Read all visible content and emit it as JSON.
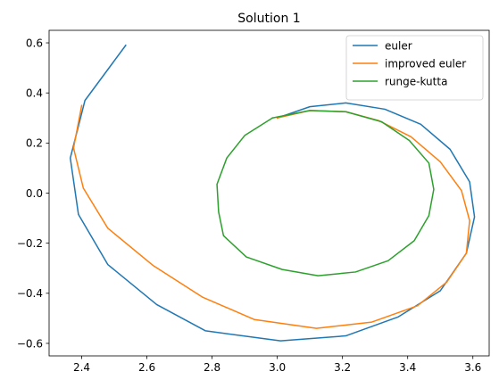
{
  "chart_data": {
    "type": "line",
    "title": "Solution 1",
    "xlabel": "",
    "ylabel": "",
    "xlim": [
      2.3,
      3.65
    ],
    "ylim": [
      -0.65,
      0.65
    ],
    "xticks": [
      2.4,
      2.6,
      2.8,
      3.0,
      3.2,
      3.4,
      3.6
    ],
    "xtick_labels": [
      "2.4",
      "2.6",
      "2.8",
      "3.0",
      "3.2",
      "3.4",
      "3.6"
    ],
    "yticks": [
      -0.6,
      -0.4,
      -0.2,
      0.0,
      0.2,
      0.4,
      0.6
    ],
    "ytick_labels": [
      "−0.6",
      "−0.4",
      "−0.2",
      "0.0",
      "0.2",
      "0.4",
      "0.6"
    ],
    "grid": false,
    "legend_position": "top-right",
    "series": [
      {
        "name": "euler",
        "color": "#1f77b4",
        "x": [
          3.0,
          3.1,
          3.21,
          3.33,
          3.44,
          3.53,
          3.59,
          3.605,
          3.58,
          3.5,
          3.37,
          3.21,
          3.01,
          2.78,
          2.63,
          2.48,
          2.39,
          2.365,
          2.41,
          2.535
        ],
        "y": [
          0.3,
          0.345,
          0.36,
          0.335,
          0.275,
          0.175,
          0.045,
          -0.095,
          -0.24,
          -0.39,
          -0.495,
          -0.57,
          -0.59,
          -0.55,
          -0.445,
          -0.285,
          -0.085,
          0.14,
          0.37,
          0.59
        ]
      },
      {
        "name": "improved euler",
        "color": "#ff7f0e",
        "x": [
          3.0,
          3.1,
          3.21,
          3.31,
          3.41,
          3.5,
          3.565,
          3.59,
          3.58,
          3.52,
          3.43,
          3.29,
          3.12,
          2.93,
          2.77,
          2.62,
          2.48,
          2.405,
          2.375,
          2.4
        ],
        "y": [
          0.3,
          0.33,
          0.325,
          0.29,
          0.225,
          0.125,
          0.01,
          -0.11,
          -0.24,
          -0.355,
          -0.45,
          -0.515,
          -0.54,
          -0.505,
          -0.415,
          -0.29,
          -0.14,
          0.02,
          0.18,
          0.35
        ]
      },
      {
        "name": "runge-kutta",
        "color": "#2ca02c",
        "x": [
          2.985,
          3.1,
          3.21,
          3.32,
          3.405,
          3.465,
          3.48,
          3.465,
          3.42,
          3.34,
          3.24,
          3.125,
          3.015,
          2.905,
          2.835,
          2.82,
          2.815,
          2.845,
          2.9,
          2.985
        ],
        "y": [
          0.3,
          0.33,
          0.325,
          0.285,
          0.21,
          0.12,
          0.015,
          -0.09,
          -0.19,
          -0.27,
          -0.315,
          -0.33,
          -0.305,
          -0.255,
          -0.17,
          -0.075,
          0.035,
          0.14,
          0.23,
          0.3
        ]
      }
    ]
  }
}
